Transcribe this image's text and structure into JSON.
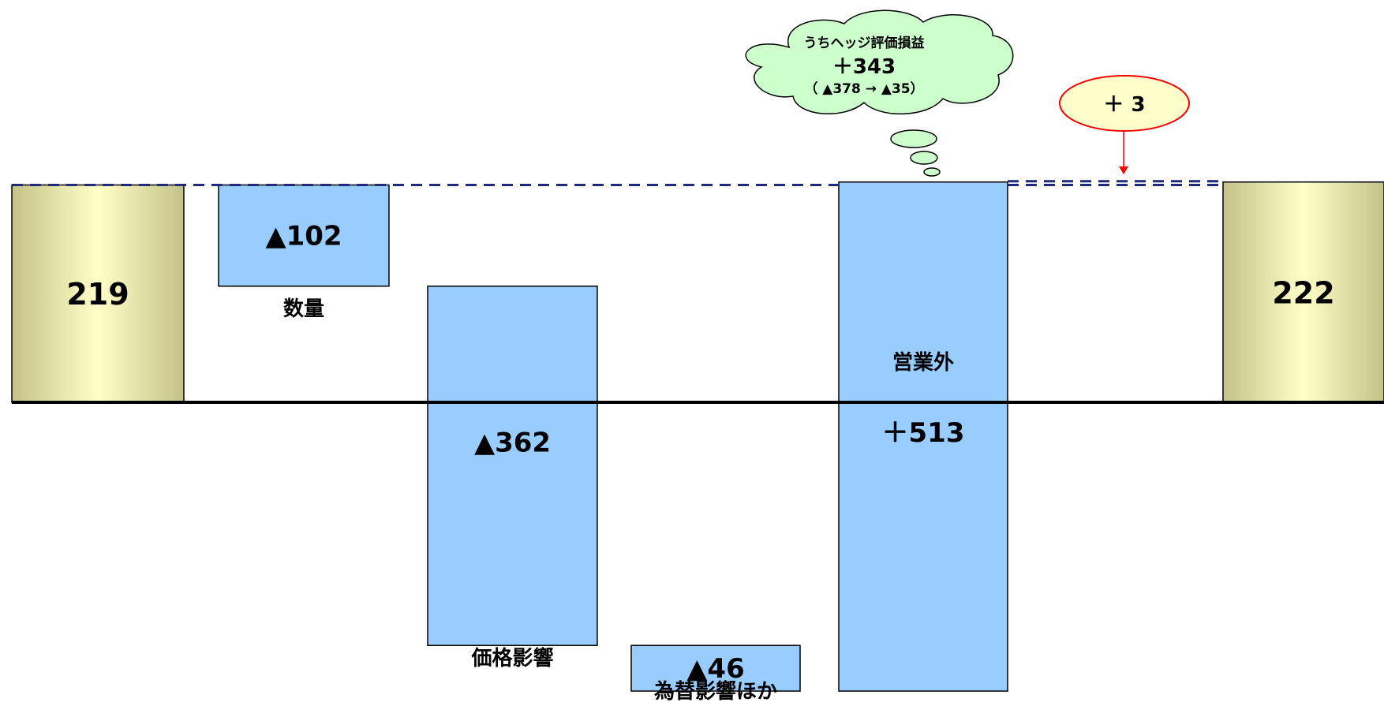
{
  "chart_data": {
    "type": "waterfall",
    "ylim": [
      -360,
      290
    ],
    "grid": false,
    "start": {
      "label": "219",
      "value": 219,
      "color": "#e7e7a6"
    },
    "end": {
      "label": "222",
      "value": 222,
      "color": "#e7e7a6"
    },
    "steps": [
      {
        "value_label": "▲102",
        "category": "数量",
        "delta": -102
      },
      {
        "value_label": "▲362",
        "category": "価格影響",
        "delta": -362
      },
      {
        "value_label": "▲46",
        "category": "為替影響ほか",
        "delta": -46
      },
      {
        "value_label": "＋513",
        "category": "営業外",
        "delta": 513
      }
    ],
    "step_color": "#99ccff",
    "difference": {
      "label": "＋ 3",
      "value": 3
    },
    "callout": {
      "title": "うちヘッジ評価損益",
      "value": "＋343",
      "detail": "（ ▲378 → ▲35）"
    }
  }
}
